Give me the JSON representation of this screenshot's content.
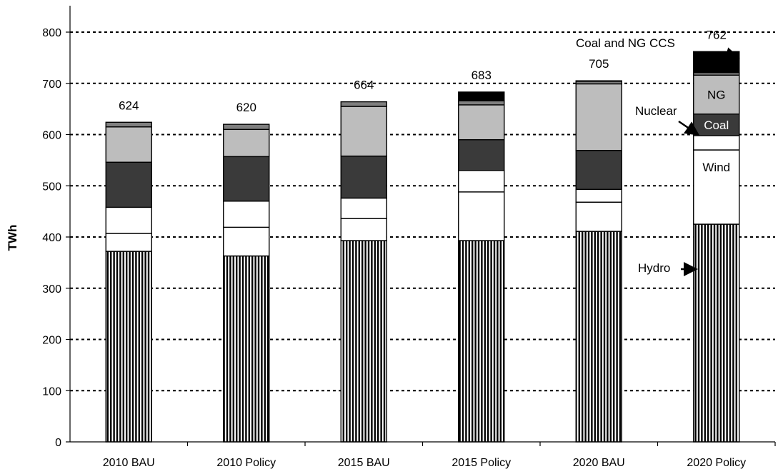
{
  "chart_data": {
    "type": "bar",
    "stacked": true,
    "title": "",
    "xlabel": "",
    "ylabel": "TWh",
    "ylim": [
      0,
      850
    ],
    "yticks": [
      0,
      100,
      200,
      300,
      400,
      500,
      600,
      700,
      800
    ],
    "grid": "horizontal-dashed",
    "categories": [
      "2010 BAU",
      "2010 Policy",
      "2015 BAU",
      "2015 Policy",
      "2020 BAU",
      "2020 Policy"
    ],
    "totals": [
      624,
      620,
      664,
      683,
      705,
      762
    ],
    "series": [
      {
        "key": "hydro",
        "fill": "stripes",
        "values": [
          372,
          363,
          393,
          393,
          411,
          425
        ]
      },
      {
        "key": "s2",
        "fill": "#ffffff",
        "values": [
          35,
          56,
          43,
          95,
          57,
          145
        ]
      },
      {
        "key": "s3",
        "fill": "#ffffff",
        "values": [
          51,
          51,
          40,
          42,
          25,
          28
        ]
      },
      {
        "key": "coal",
        "fill": "#3a3a3a",
        "values": [
          88,
          87,
          82,
          60,
          76,
          42
        ]
      },
      {
        "key": "ng",
        "fill": "#bdbdbd",
        "values": [
          69,
          53,
          97,
          68,
          130,
          76
        ]
      },
      {
        "key": "s6",
        "fill": "#7f7f7f",
        "values": [
          9,
          10,
          9,
          8,
          5,
          5
        ]
      },
      {
        "key": "ccs",
        "fill": "#000000",
        "values": [
          0,
          0,
          0,
          17,
          1,
          41
        ]
      }
    ],
    "annotations": {
      "hydro": "Hydro",
      "wind": "Wind",
      "nuclear": "Nuclear",
      "coal": "Coal",
      "ng": "NG",
      "ccs": "Coal and NG CCS"
    }
  }
}
